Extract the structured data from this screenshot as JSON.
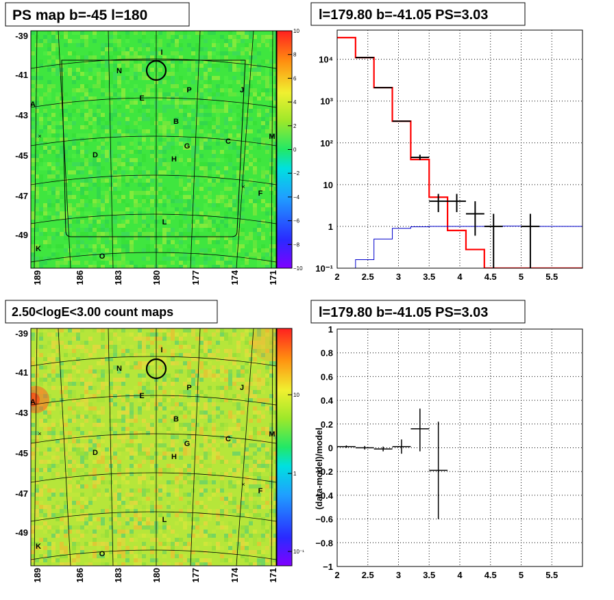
{
  "panels": {
    "tl_title": "PS map b=-45 l=180",
    "tr_title": "l=179.80 b=-41.05 PS=3.03",
    "bl_title": "2.50<logE<3.00 count maps",
    "br_title": "l=179.80 b=-41.05 PS=3.03",
    "br_ylabel": "(data-model)/model"
  },
  "maps": {
    "y_ticks": [
      "-39",
      "-41",
      "-43",
      "-45",
      "-47",
      "-49"
    ],
    "x_ticks": [
      "189",
      "186",
      "183",
      "180",
      "177",
      "174",
      "171"
    ],
    "sources": [
      "I",
      "N",
      "E",
      "P",
      "J",
      "A",
      "B",
      "C",
      "M",
      "G",
      "D",
      "H",
      "F",
      "L",
      "K",
      "O"
    ],
    "ps_colorbar_ticks": [
      "10",
      "8",
      "6",
      "4",
      "2",
      "0",
      "−2",
      "−4",
      "−6",
      "−8",
      "−10"
    ],
    "count_colorbar_ticks": [
      "10",
      "1",
      "10⁻¹"
    ],
    "colors": {
      "ps_bg": "#3fe63f",
      "count_bg": "#b6e63a",
      "model_line": "#ff0000",
      "bg_line": "#0000cc"
    }
  },
  "chart_data": [
    {
      "type": "line",
      "title": "l=179.80 b=-41.05 PS=3.03",
      "xlabel": "",
      "ylabel": "",
      "yscale": "log",
      "xlim": [
        2,
        6
      ],
      "ylim": [
        0.1,
        50000
      ],
      "x_ticks": [
        "2",
        "2.5",
        "3",
        "3.5",
        "4",
        "4.5",
        "5",
        "5.5"
      ],
      "y_ticks": [
        "10⁻¹",
        "1",
        "10",
        "10²",
        "10³",
        "10⁴"
      ],
      "bin_edges": [
        2.0,
        2.3,
        2.6,
        2.9,
        3.2,
        3.5,
        3.8,
        4.1,
        4.4,
        4.7,
        5.0,
        5.3,
        6.0
      ],
      "series": [
        {
          "values": [
            33000,
            11000,
            2100,
            330,
            40,
            5,
            0.8,
            0.28,
            0.1,
            0.1,
            0.1,
            0.1
          ]
        },
        {
          "values": [
            0.1,
            0.16,
            0.5,
            0.9,
            0.98,
            1.0,
            1.0,
            1.0,
            1.0,
            1.02,
            1.0,
            1.0
          ]
        }
      ],
      "data_points": [
        {
          "x": 2.45,
          "y": 11000,
          "xerr": 0.15,
          "ylo": 10800,
          "yhi": 11200
        },
        {
          "x": 2.75,
          "y": 2100,
          "xerr": 0.15,
          "ylo": 2050,
          "yhi": 2150
        },
        {
          "x": 3.05,
          "y": 330,
          "xerr": 0.15,
          "ylo": 320,
          "yhi": 340
        },
        {
          "x": 3.35,
          "y": 45,
          "xerr": 0.15,
          "ylo": 39,
          "yhi": 52
        },
        {
          "x": 3.65,
          "y": 4,
          "xerr": 0.15,
          "ylo": 2.2,
          "yhi": 6
        },
        {
          "x": 3.95,
          "y": 4,
          "xerr": 0.15,
          "ylo": 2.2,
          "yhi": 6
        },
        {
          "x": 4.25,
          "y": 2,
          "xerr": 0.15,
          "ylo": 0.6,
          "yhi": 4
        },
        {
          "x": 4.55,
          "y": 1,
          "xerr": 0.15,
          "ylo": 0.1,
          "yhi": 2
        },
        {
          "x": 5.15,
          "y": 1,
          "xerr": 0.15,
          "ylo": 0.1,
          "yhi": 2
        }
      ]
    },
    {
      "type": "scatter",
      "title": "l=179.80 b=-41.05 PS=3.03",
      "xlabel": "",
      "ylabel": "(data-model)/model",
      "xlim": [
        2,
        6
      ],
      "ylim": [
        -1,
        1
      ],
      "x_ticks": [
        "2",
        "2.5",
        "3",
        "3.5",
        "4",
        "4.5",
        "5",
        "5.5"
      ],
      "y_ticks": [
        "−1",
        "−0.8",
        "−0.6",
        "−0.4",
        "−0.2",
        "0",
        "0.2",
        "0.4",
        "0.6",
        "0.8",
        "1"
      ],
      "points": [
        {
          "x": 2.15,
          "y": 0.01,
          "xerr": 0.15,
          "ylo": 0.0,
          "yhi": 0.02
        },
        {
          "x": 2.45,
          "y": 0.0,
          "xerr": 0.15,
          "ylo": -0.015,
          "yhi": 0.015
        },
        {
          "x": 2.75,
          "y": -0.01,
          "xerr": 0.15,
          "ylo": -0.03,
          "yhi": 0.01
        },
        {
          "x": 3.05,
          "y": 0.01,
          "xerr": 0.15,
          "ylo": -0.05,
          "yhi": 0.07
        },
        {
          "x": 3.35,
          "y": 0.16,
          "xerr": 0.15,
          "ylo": -0.03,
          "yhi": 0.33
        },
        {
          "x": 3.65,
          "y": -0.19,
          "xerr": 0.15,
          "ylo": -0.6,
          "yhi": 0.22
        }
      ]
    }
  ]
}
